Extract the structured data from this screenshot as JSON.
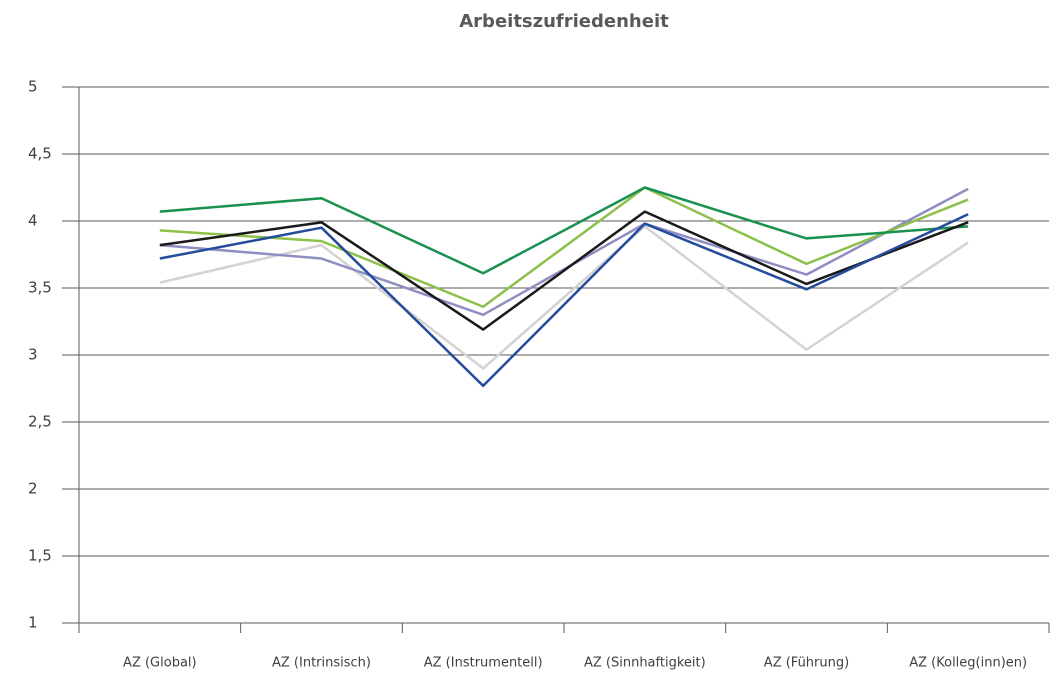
{
  "chart_data": {
    "type": "line",
    "title": "Arbeitszufriedenheit",
    "categories": [
      "AZ (Global)",
      "AZ (Intrinsisch)",
      "AZ (Instrumentell)",
      "AZ (Sinnhaftigkeit)",
      "AZ (Führung)",
      "AZ (Kolleg(inn)en)"
    ],
    "series": [
      {
        "color": "#d3d3d3",
        "values": [
          3.54,
          3.82,
          2.9,
          3.96,
          3.04,
          3.84
        ]
      },
      {
        "color": "#8e8ec4",
        "values": [
          3.82,
          3.72,
          3.3,
          3.98,
          3.6,
          4.24
        ]
      },
      {
        "color": "#8cc04a",
        "values": [
          3.93,
          3.85,
          3.36,
          4.25,
          3.68,
          4.16
        ]
      },
      {
        "color": "#1a9150",
        "values": [
          4.07,
          4.17,
          3.61,
          4.25,
          3.87,
          3.96
        ]
      },
      {
        "color": "#1a1a1a",
        "values": [
          3.82,
          3.99,
          3.19,
          4.07,
          3.53,
          3.99
        ]
      },
      {
        "color": "#234c9c",
        "values": [
          3.72,
          3.95,
          2.77,
          3.98,
          3.49,
          4.05
        ]
      }
    ],
    "ylim": [
      1,
      5
    ],
    "yticks": [
      1,
      {
        "value": 1.5,
        "label": "1,5"
      },
      2,
      {
        "value": 2.5,
        "label": "2,5"
      },
      3,
      {
        "value": 3.5,
        "label": "3,5"
      },
      4,
      {
        "value": 4.5,
        "label": "4,5"
      },
      5
    ],
    "grid": true
  }
}
